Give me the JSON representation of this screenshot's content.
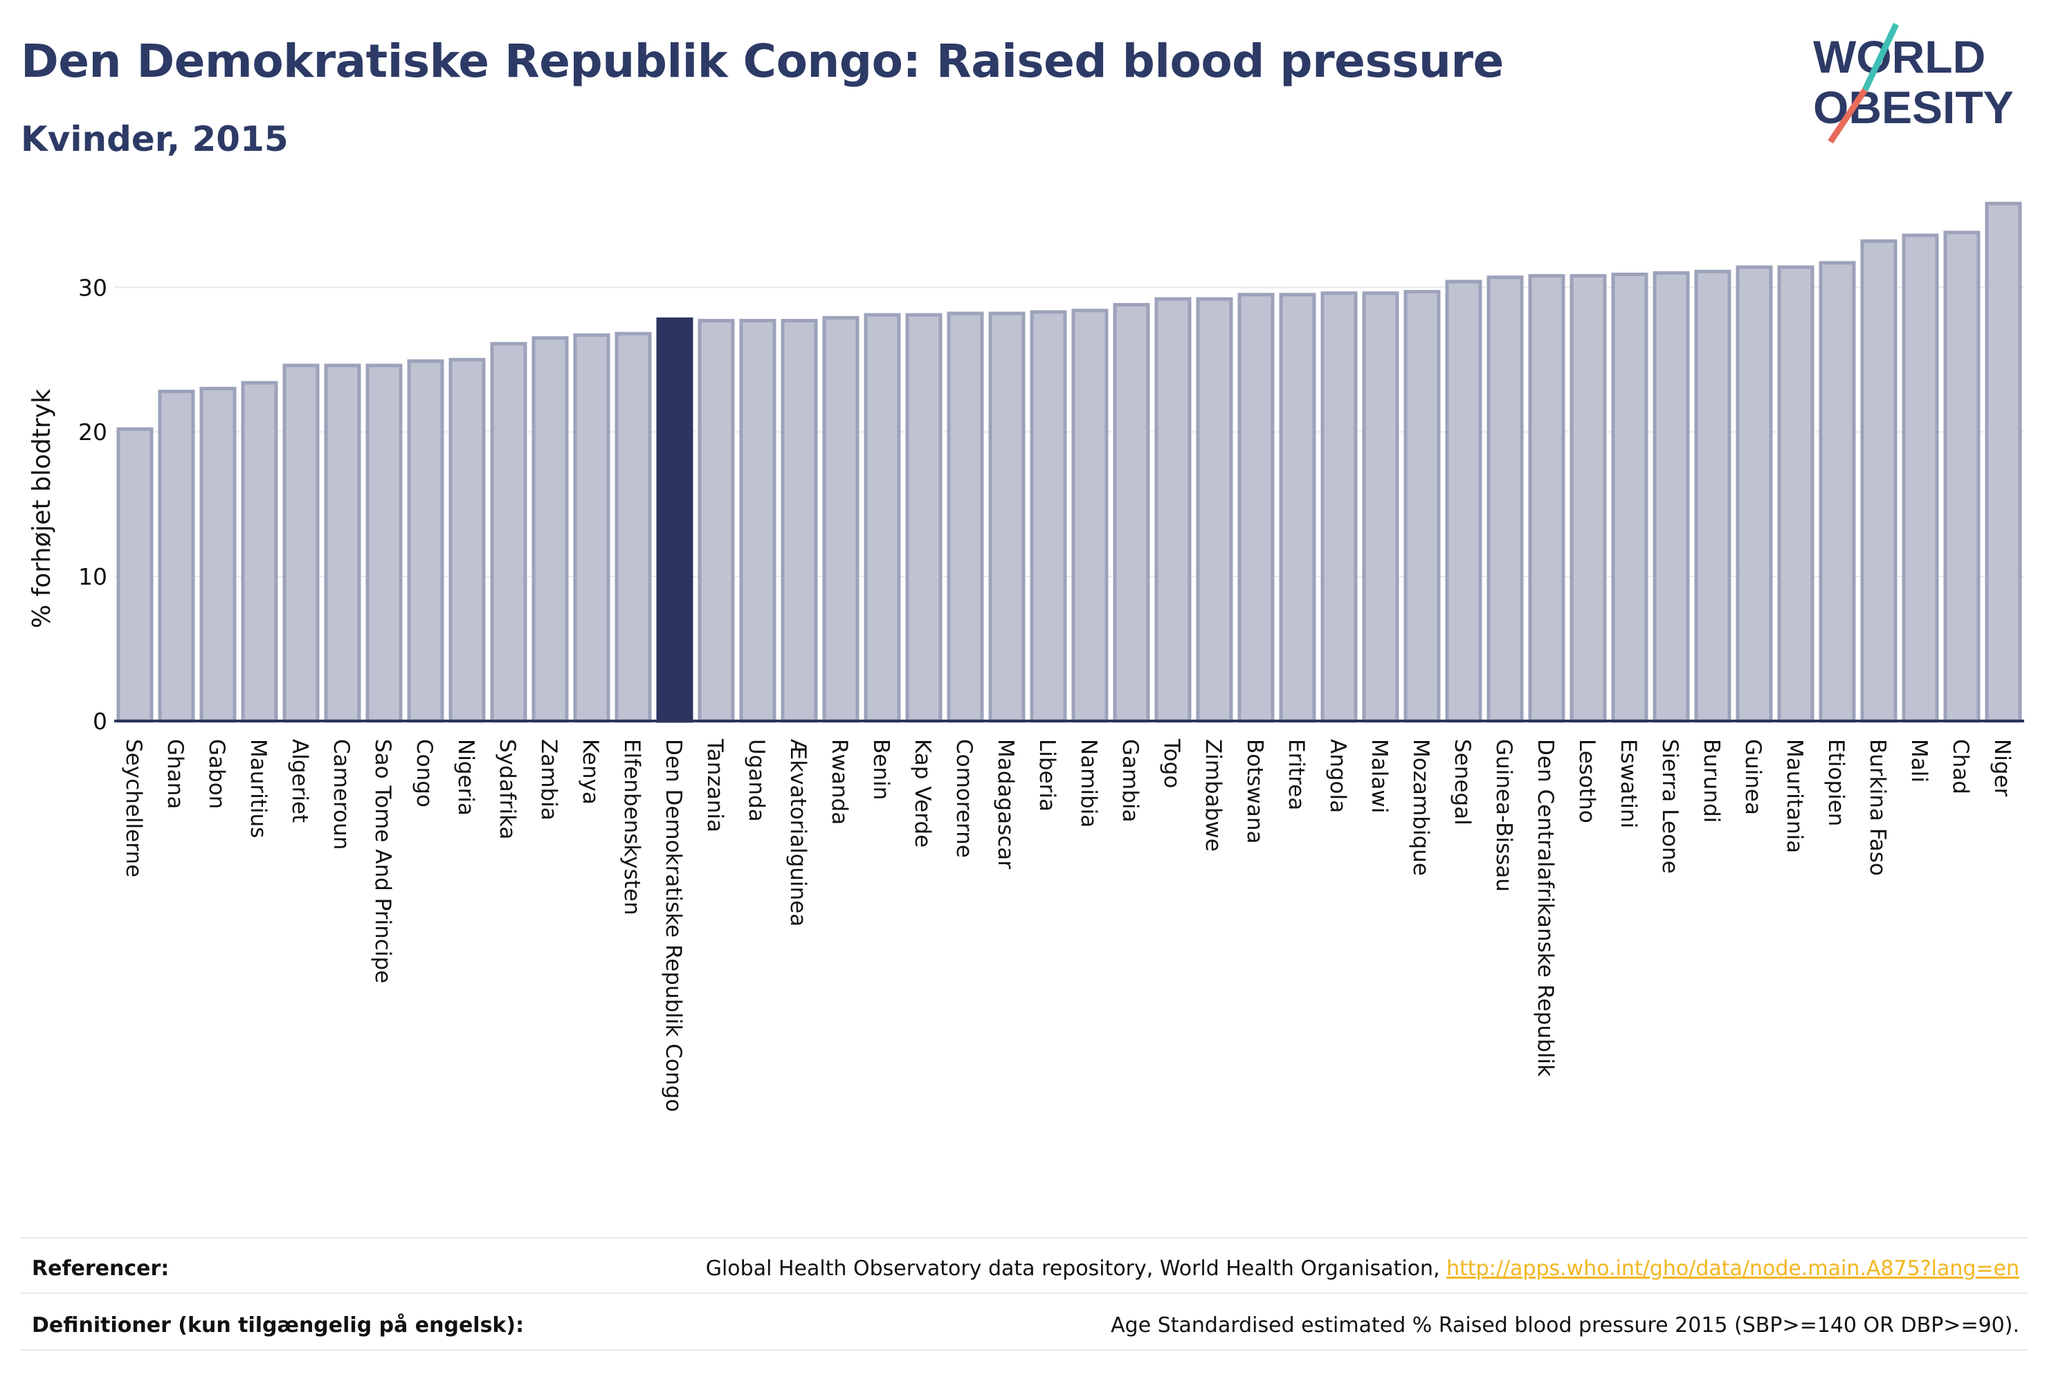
{
  "header": {
    "title": "Den Demokratiske Republik Congo: Raised blood pressure",
    "subtitle": "Kvinder, 2015"
  },
  "logo": {
    "line1": "WORLD",
    "line2": "OBESITY"
  },
  "chart_data": {
    "type": "bar",
    "title": "Den Demokratiske Republik Congo: Raised blood pressure",
    "subtitle": "Kvinder, 2015",
    "xlabel": "",
    "ylabel": "% forhøjet blodtryk",
    "ylim": [
      0,
      36
    ],
    "yticks": [
      0,
      10,
      20,
      30
    ],
    "grid": true,
    "highlight": "Den Demokratiske Republik Congo",
    "categories": [
      "Seychellerne",
      "Ghana",
      "Gabon",
      "Mauritius",
      "Algeriet",
      "Cameroun",
      "Sao Tome And Principe",
      "Congo",
      "Nigeria",
      "Sydafrika",
      "Zambia",
      "Kenya",
      "Elfenbenskysten",
      "Den Demokratiske Republik Congo",
      "Tanzania",
      "Uganda",
      "Ækvatorialguinea",
      "Rwanda",
      "Benin",
      "Kap Verde",
      "Comorerne",
      "Madagascar",
      "Liberia",
      "Namibia",
      "Gambia",
      "Togo",
      "Zimbabwe",
      "Botswana",
      "Eritrea",
      "Angola",
      "Malawi",
      "Mozambique",
      "Senegal",
      "Guinea-Bissau",
      "Den Centralafrikanske Republik",
      "Lesotho",
      "Eswatini",
      "Sierra Leone",
      "Burundi",
      "Guinea",
      "Mauritania",
      "Etiopien",
      "Burkina Faso",
      "Mali",
      "Chad",
      "Niger"
    ],
    "values": [
      20.2,
      22.8,
      23.0,
      23.4,
      24.6,
      24.6,
      24.6,
      24.9,
      25.0,
      26.1,
      26.5,
      26.7,
      26.8,
      27.8,
      27.7,
      27.7,
      27.7,
      27.9,
      28.1,
      28.1,
      28.2,
      28.2,
      28.3,
      28.4,
      28.8,
      29.2,
      29.2,
      29.5,
      29.5,
      29.6,
      29.6,
      29.7,
      30.4,
      30.7,
      30.8,
      30.8,
      30.9,
      31.0,
      31.1,
      31.4,
      31.4,
      31.7,
      33.2,
      33.6,
      33.8,
      35.8
    ],
    "colors": {
      "bar": "#bfc3d1",
      "bar_border": "#9ca2ba",
      "highlight": "#2b3560",
      "axis": "#2b3560",
      "grid": "#e8e9ee"
    }
  },
  "footer": {
    "references_label": "Referencer:",
    "references_text": "Global Health Observatory data repository, World Health Organisation, ",
    "references_link": "http://apps.who.int/gho/data/node.main.A875?lang=en",
    "definitions_label": "Definitioner (kun tilgængelig på engelsk):",
    "definitions_text": "Age Standardised estimated % Raised blood pressure 2015 (SBP>=140 OR DBP>=90)."
  }
}
